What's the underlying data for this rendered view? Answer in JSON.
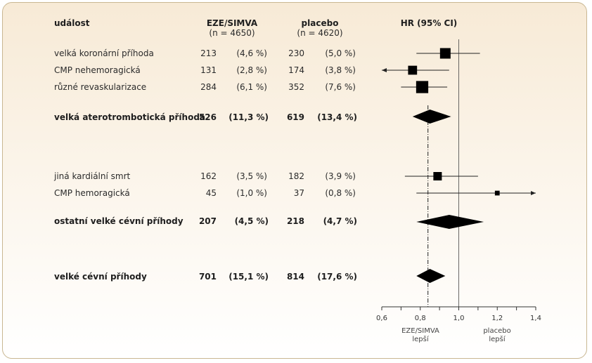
{
  "header": {
    "event": "událost",
    "eze_title": "EZE/SIMVA",
    "eze_n": "(n = 4650)",
    "placebo_title": "placebo",
    "placebo_n": "(n = 4620)",
    "hr_title": "HR (95% CI)"
  },
  "rows": [
    {
      "label": "velká koronární příhoda",
      "eze_n": "213",
      "eze_pct": "(4,6 %)",
      "pl_n": "230",
      "pl_pct": "(5,0 %)",
      "bold": false
    },
    {
      "label": "CMP nehemoragická",
      "eze_n": "131",
      "eze_pct": "(2,8 %)",
      "pl_n": "174",
      "pl_pct": "(3,8 %)",
      "bold": false
    },
    {
      "label": "různé revaskularizace",
      "eze_n": "284",
      "eze_pct": "(6,1 %)",
      "pl_n": "352",
      "pl_pct": "(7,6 %)",
      "bold": false
    },
    {
      "label": "velká aterotrombotická příhoda",
      "eze_n": "526",
      "eze_pct": "(11,3 %)",
      "pl_n": "619",
      "pl_pct": "(13,4 %)",
      "bold": true
    },
    {
      "label": "jiná kardiální smrt",
      "eze_n": "162",
      "eze_pct": "(3,5 %)",
      "pl_n": "182",
      "pl_pct": "(3,9 %)",
      "bold": false
    },
    {
      "label": "CMP hemoragická",
      "eze_n": "45",
      "eze_pct": "(1,0 %)",
      "pl_n": "37",
      "pl_pct": "(0,8 %)",
      "bold": false
    },
    {
      "label": "ostatní velké cévní příhody",
      "eze_n": "207",
      "eze_pct": "(4,5 %)",
      "pl_n": "218",
      "pl_pct": "(4,7 %)",
      "bold": true
    },
    {
      "label": "velké cévní příhody",
      "eze_n": "701",
      "eze_pct": "(15,1 %)",
      "pl_n": "814",
      "pl_pct": "(17,6 %)",
      "bold": true
    }
  ],
  "axis_labels": {
    "left_line1": "EZE/SIMVA",
    "left_line2": "lepší",
    "right_line1": "placebo",
    "right_line2": "lepší"
  },
  "chart_data": {
    "type": "forest",
    "x_scale": "linear",
    "xlim": [
      0.6,
      1.4
    ],
    "ticks": [
      "0,6",
      "0,8",
      "1,0",
      "1,2",
      "1,4"
    ],
    "tick_values": [
      0.6,
      0.8,
      1.0,
      1.2,
      1.4
    ],
    "reference_line": 1.0,
    "overall_line": 0.84,
    "estimates": [
      {
        "row": 0,
        "hr": 0.93,
        "lo": 0.78,
        "hi": 1.11,
        "marker": "square",
        "weight": 1.0
      },
      {
        "row": 1,
        "hr": 0.76,
        "lo": 0.6,
        "hi": 0.95,
        "marker": "square",
        "weight": 0.85,
        "arrow_left": true
      },
      {
        "row": 2,
        "hr": 0.81,
        "lo": 0.7,
        "hi": 0.94,
        "marker": "square",
        "weight": 1.15
      },
      {
        "row": 3,
        "hr": 0.85,
        "lo": 0.76,
        "hi": 0.96,
        "marker": "diamond"
      },
      {
        "row": 4,
        "hr": 0.89,
        "lo": 0.72,
        "hi": 1.1,
        "marker": "square",
        "weight": 0.8
      },
      {
        "row": 5,
        "hr": 1.2,
        "lo": 0.78,
        "hi": 1.4,
        "marker": "square",
        "weight": 0.45,
        "arrow_right": true
      },
      {
        "row": 6,
        "hr": 0.95,
        "lo": 0.78,
        "hi": 1.13,
        "marker": "diamond"
      },
      {
        "row": 7,
        "hr": 0.85,
        "lo": 0.78,
        "hi": 0.93,
        "marker": "diamond"
      }
    ]
  }
}
